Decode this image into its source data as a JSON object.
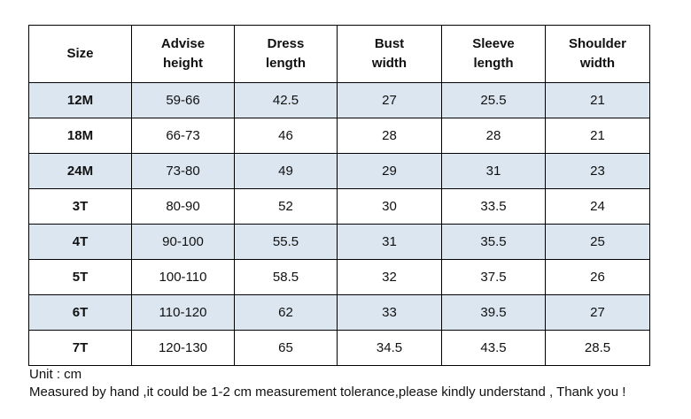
{
  "table": {
    "header": [
      "Size",
      "Advise height",
      "Dress length",
      "Bust width",
      "Sleeve length",
      "Shoulder width"
    ],
    "rows": [
      [
        "12M",
        "59-66",
        42.5,
        27,
        25.5,
        21
      ],
      [
        "18M",
        "66-73",
        46,
        28,
        28,
        21
      ],
      [
        "24M",
        "73-80",
        49,
        29,
        31,
        23
      ],
      [
        "3T",
        "80-90",
        52,
        30,
        33.5,
        24
      ],
      [
        "4T",
        "90-100",
        55.5,
        31,
        35.5,
        25
      ],
      [
        "5T",
        "100-110",
        58.5,
        32,
        37.5,
        26
      ],
      [
        "6T",
        "110-120",
        62,
        33,
        39.5,
        27
      ],
      [
        "7T",
        "120-130",
        65,
        34.5,
        43.5,
        28.5
      ]
    ]
  },
  "notes": [
    "Unit : cm",
    "Measured by hand ,it could be 1-2 cm measurement tolerance,please kindly understand , Thank you !"
  ]
}
